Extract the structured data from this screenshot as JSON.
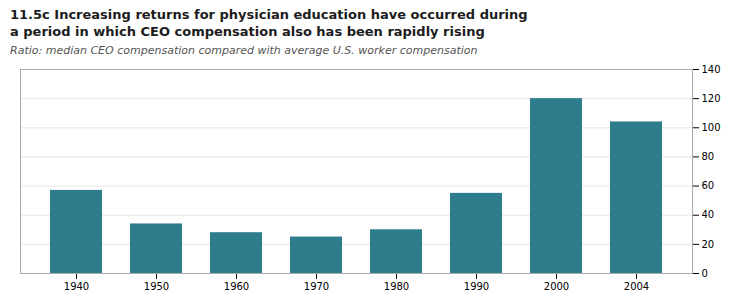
{
  "chart_data": {
    "type": "bar",
    "title": "11.5c Increasing returns for physician education have occurred during\na period in which CEO compensation also has been rapidly rising",
    "subtitle": "Ratio: median CEO compensation compared with average U.S. worker compensation",
    "categories": [
      "1940",
      "1950",
      "1960",
      "1970",
      "1980",
      "1990",
      "2000",
      "2004"
    ],
    "values": [
      57,
      34,
      28,
      25,
      30,
      55,
      120,
      104
    ],
    "color": "#2e7d8c",
    "ylim": [
      0,
      140
    ],
    "yticks": [
      0,
      20,
      40,
      60,
      80,
      100,
      120,
      140
    ],
    "grid": true
  }
}
